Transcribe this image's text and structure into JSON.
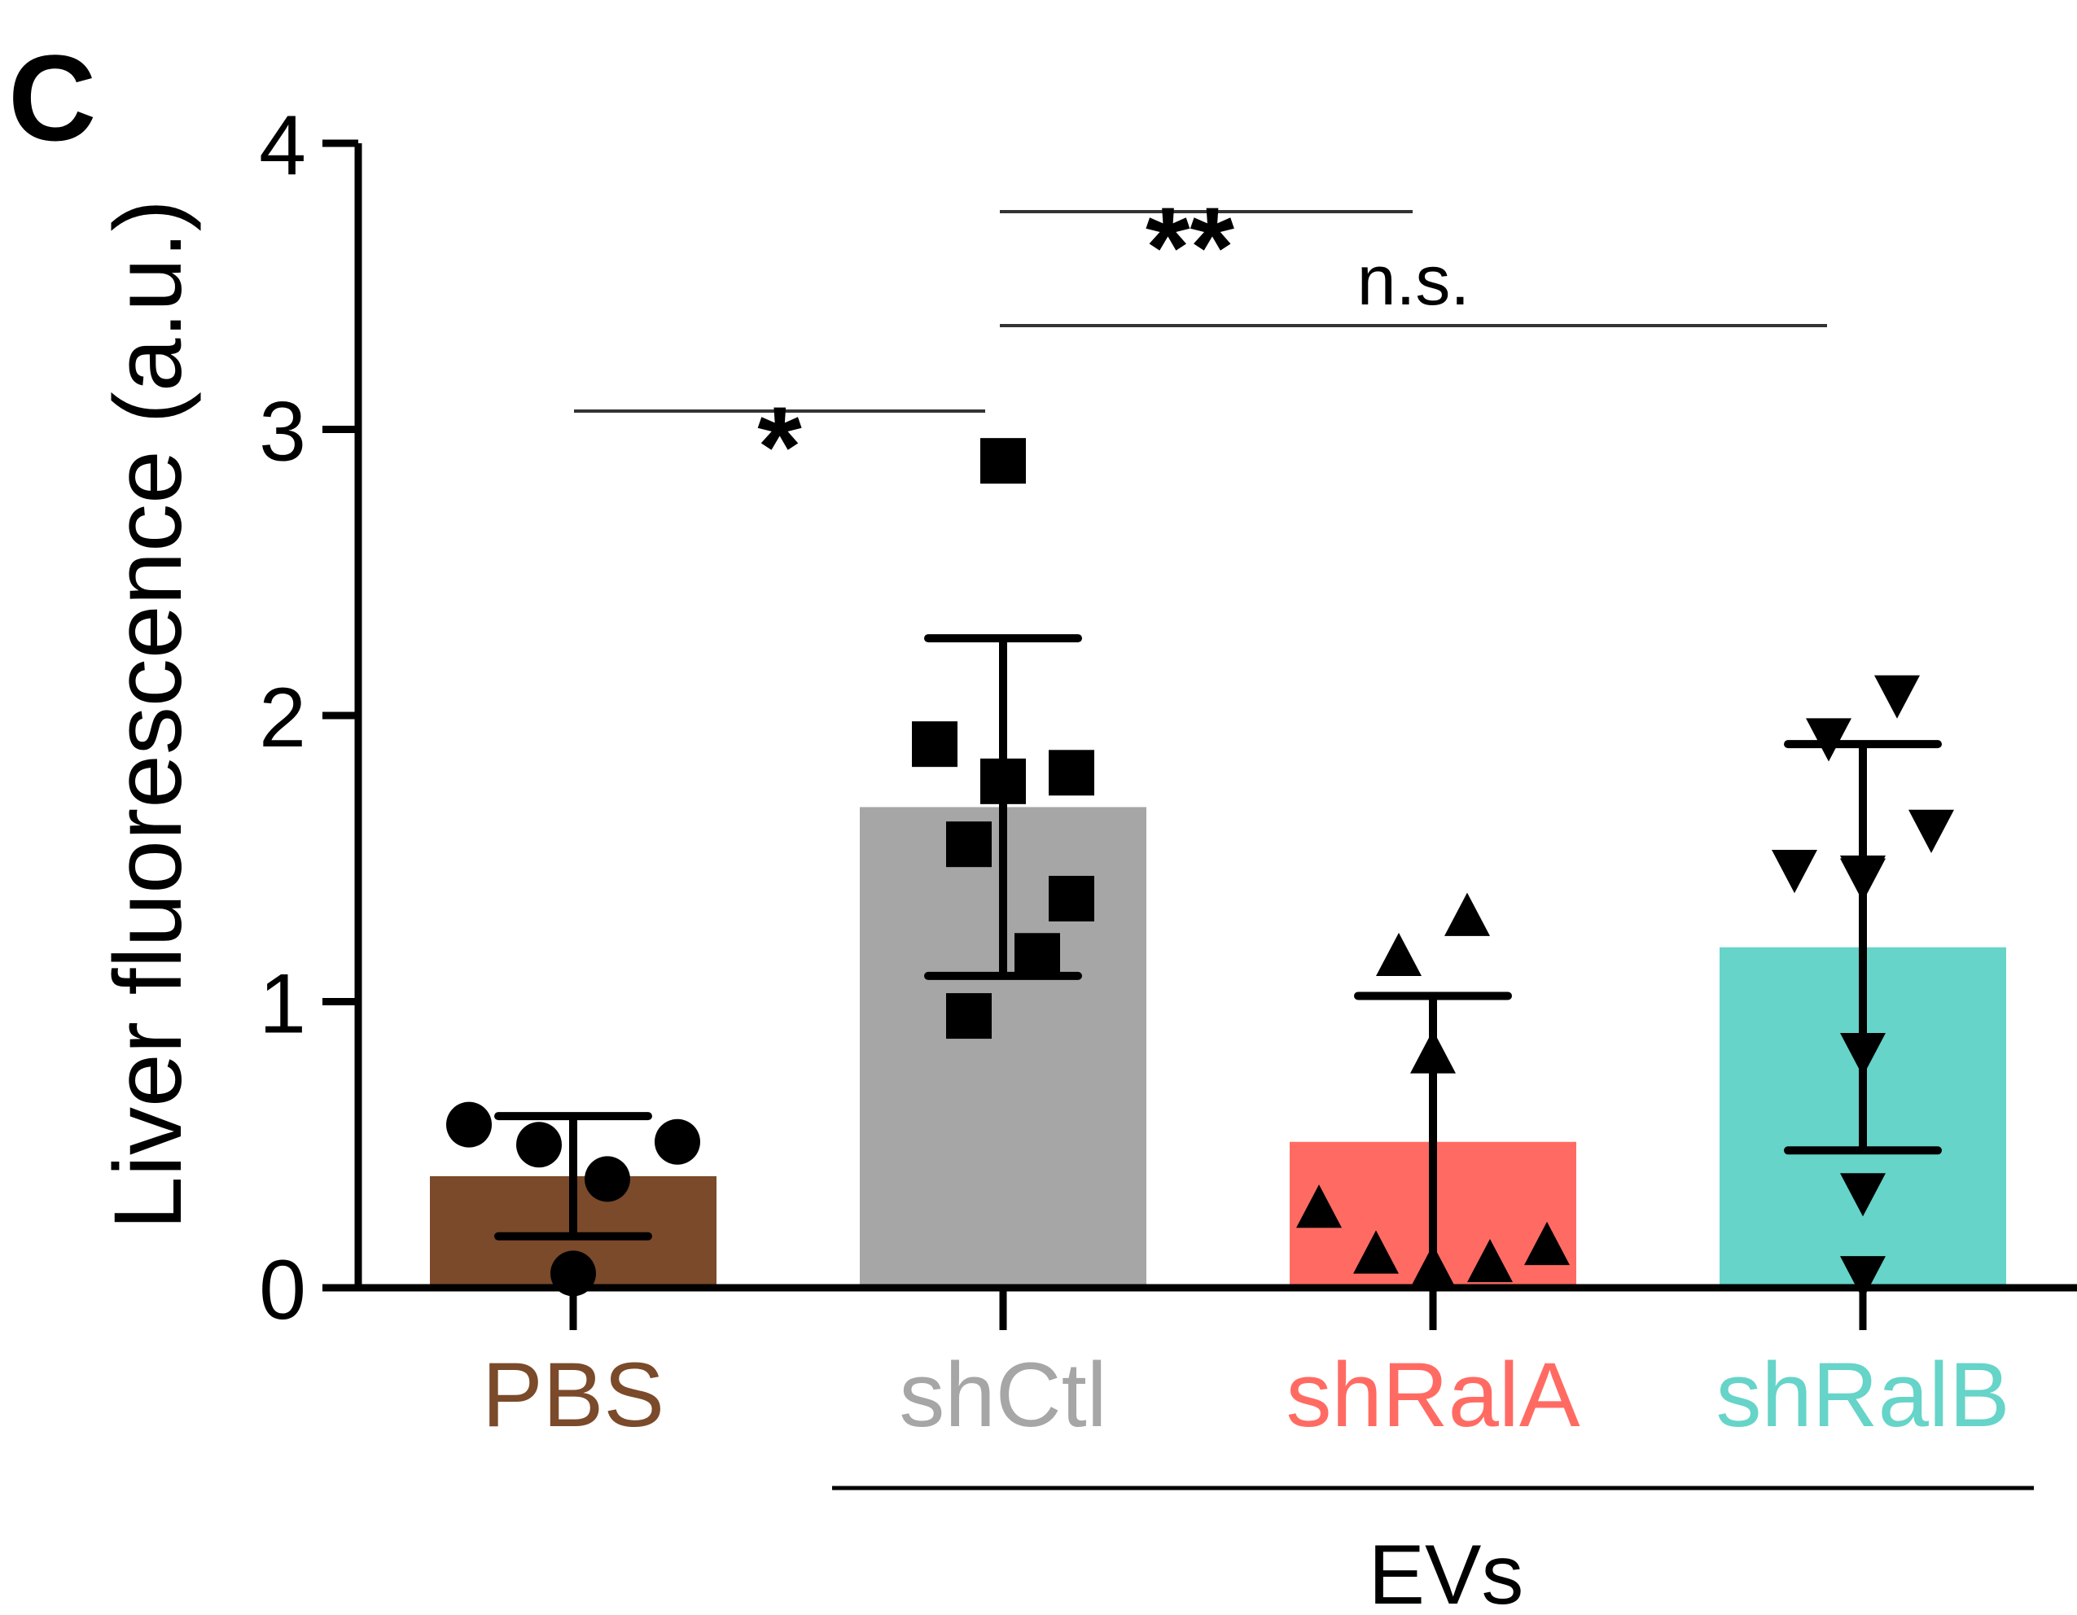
{
  "panel_label": "C",
  "chart_data": {
    "type": "bar",
    "ylabel": "Liver fluorescence (a.u.)",
    "ylim": [
      0,
      4
    ],
    "yticks": [
      "0",
      "1",
      "2",
      "3",
      "4"
    ],
    "categories": [
      "PBS",
      "shCtl",
      "shRalA",
      "shRalB"
    ],
    "category_colors": [
      "#7a4a2a",
      "#a6a6a6",
      "#ff6b63",
      "#66d4c8"
    ],
    "means": [
      0.39,
      1.68,
      0.51,
      1.19
    ],
    "sd": [
      0.21,
      0.59,
      0.51,
      0.71
    ],
    "markers": [
      "circle",
      "square",
      "triangle-up",
      "triangle-down"
    ],
    "points": [
      [
        0.57,
        0.5,
        0.38,
        0.51,
        0.05
      ],
      [
        2.89,
        1.9,
        1.77,
        1.8,
        1.55,
        1.36,
        1.16,
        0.95
      ],
      [
        1.29,
        1.15,
        0.81,
        0.27,
        0.11,
        0.06,
        0.08,
        0.14
      ],
      [
        2.08,
        1.93,
        1.61,
        1.47,
        1.45,
        1.44,
        0.83,
        0.34,
        0.05
      ]
    ],
    "group_label": "EVs",
    "group_members": [
      "shCtl",
      "shRalA",
      "shRalB"
    ],
    "significance": [
      {
        "from": "PBS",
        "to": "shCtl",
        "label": "*"
      },
      {
        "from": "shCtl",
        "to": "shRalA",
        "label": "**"
      },
      {
        "from": "shCtl",
        "to": "shRalB",
        "label": "n.s."
      }
    ]
  }
}
